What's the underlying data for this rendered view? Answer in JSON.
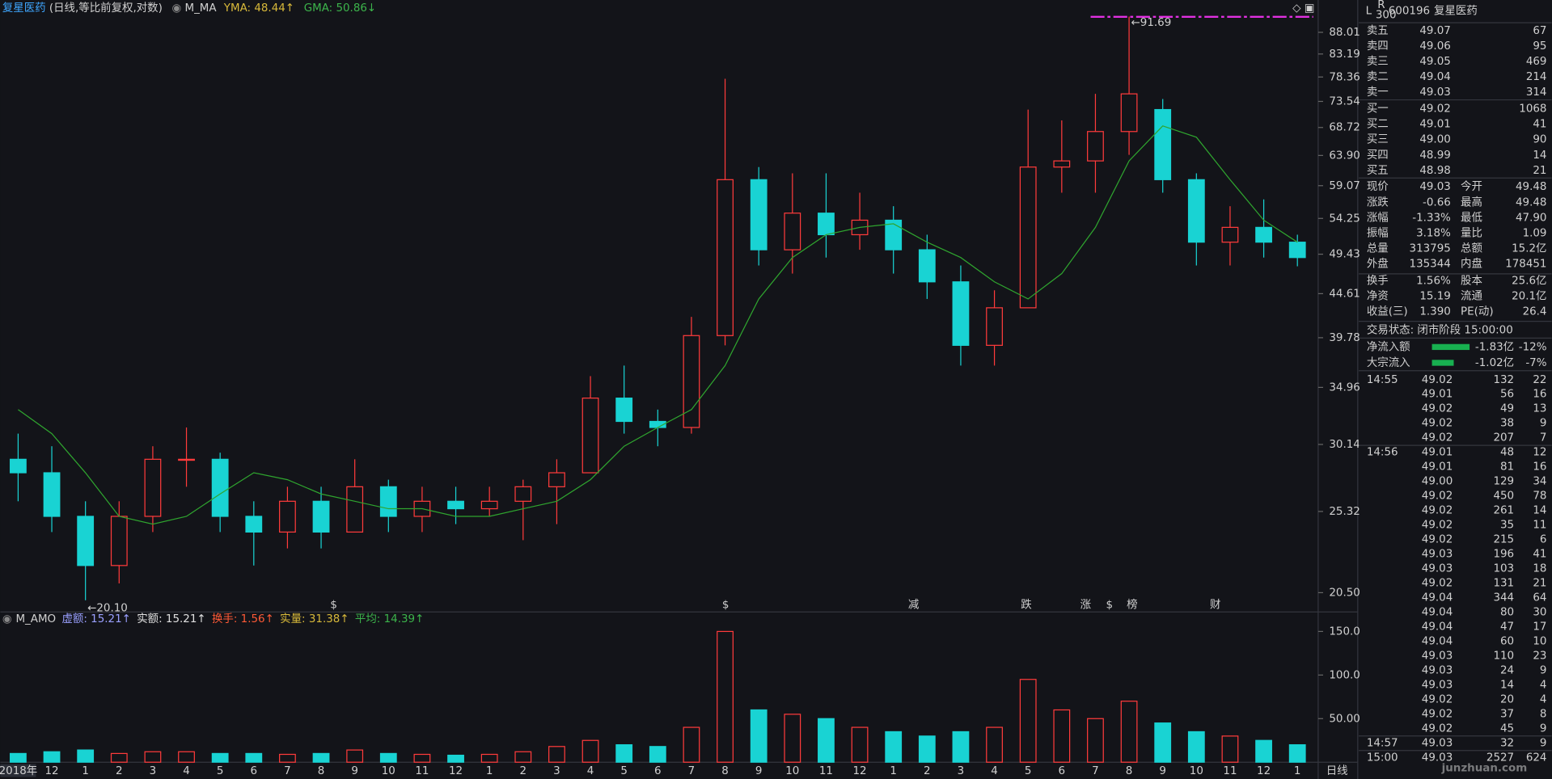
{
  "header": {
    "name": "复星医药",
    "params": "(日线,等比前复权,对数)",
    "indicator": "M_MA",
    "yma": "YMA: 48.44↑",
    "gma": "GMA: 50.86↓",
    "yma_color": "#d8b93a",
    "gma_color": "#3cb44b"
  },
  "chart_data": [
    {
      "type": "candlestick",
      "categories": [
        "2018年",
        "12",
        "1",
        "2",
        "3",
        "4",
        "5",
        "6",
        "7",
        "8",
        "9",
        "10",
        "11",
        "12",
        "1",
        "2",
        "3",
        "4",
        "5",
        "6",
        "7",
        "8",
        "9",
        "10",
        "11",
        "12",
        "1",
        "2",
        "3",
        "4",
        "5",
        "6",
        "7",
        "8",
        "9",
        "10",
        "11",
        "12",
        "1"
      ],
      "open": [
        29,
        28,
        25,
        22,
        25,
        29,
        29,
        25,
        24,
        26,
        24,
        27,
        25,
        26,
        25.5,
        26,
        27,
        28,
        34,
        32,
        31.5,
        40,
        60,
        50,
        55,
        52,
        54,
        50,
        46,
        39,
        43,
        62,
        63,
        68,
        72,
        60,
        51,
        53,
        51
      ],
      "high": [
        31,
        30,
        26,
        26,
        30,
        31.5,
        29.5,
        26,
        27,
        27,
        29,
        27.5,
        27,
        27,
        27,
        27.5,
        29,
        36,
        37,
        33,
        42,
        78,
        62,
        61,
        61,
        58,
        56,
        52,
        48,
        45,
        72,
        70,
        75,
        91.69,
        74,
        61,
        56,
        57,
        52
      ],
      "low": [
        26,
        24,
        20.1,
        21,
        24,
        27,
        24,
        22,
        23,
        23,
        24,
        24,
        24,
        24.5,
        25,
        23.5,
        24.5,
        28,
        31,
        30,
        31,
        39,
        48,
        47,
        49,
        50,
        47,
        44,
        37,
        37,
        43,
        58,
        58,
        64,
        58,
        48,
        48,
        49,
        47.9
      ],
      "close": [
        28,
        25,
        22,
        25,
        29,
        29,
        25,
        24,
        26,
        24,
        27,
        25,
        26,
        25.5,
        26,
        27,
        28,
        34,
        32,
        31.5,
        40,
        60,
        50,
        55,
        52,
        54,
        50,
        46,
        39,
        43,
        62,
        63,
        68,
        75,
        60,
        51,
        53,
        51,
        49
      ],
      "colors": {
        "up": "#ff3b3b",
        "down": "#19d3d3"
      },
      "series": [
        {
          "color": "#2fa52f",
          "values": [
            33,
            31,
            28,
            25,
            24.5,
            25,
            26.5,
            28,
            27.5,
            26.5,
            26,
            25.5,
            25.5,
            25,
            25,
            25.5,
            26,
            27.5,
            30,
            31.5,
            33,
            37,
            44,
            49,
            52,
            53,
            53.5,
            51,
            49,
            46,
            44,
            47,
            53,
            63,
            69,
            67,
            60,
            54,
            51
          ]
        }
      ],
      "log_scale": true,
      "ylim": [
        19.7,
        93.3
      ],
      "yticks": [
        {
          "value": 88.01,
          "label": "88.01"
        },
        {
          "value": 83.19,
          "label": "83.19"
        },
        {
          "value": 78.36,
          "label": "78.36"
        },
        {
          "value": 73.54,
          "label": "73.54"
        },
        {
          "value": 68.72,
          "label": "68.72"
        },
        {
          "value": 63.9,
          "label": "63.90"
        },
        {
          "value": 59.07,
          "label": "59.07"
        },
        {
          "value": 54.25,
          "label": "54.25"
        },
        {
          "value": 49.43,
          "label": "49.43"
        },
        {
          "value": 44.61,
          "label": "44.61"
        },
        {
          "value": 39.78,
          "label": "39.78"
        },
        {
          "value": 34.96,
          "label": "34.96"
        },
        {
          "value": 30.14,
          "label": "30.14"
        },
        {
          "value": 25.32,
          "label": "25.32"
        },
        {
          "value": 20.5,
          "label": "20.50"
        }
      ],
      "annotations": [
        {
          "text": "←91.69",
          "index": 33
        },
        {
          "text": "←20.10",
          "index": 2
        }
      ],
      "events": [
        {
          "text": "$",
          "color": "#ff3b3b"
        },
        {
          "text": "$",
          "color": "#ff3b3b"
        },
        {
          "text": "减",
          "color": "#3cd070"
        },
        {
          "text": "跌",
          "color": "#3cd070"
        },
        {
          "text": "涨",
          "color": "#ff5a5a"
        },
        {
          "text": "$",
          "color": "#ff3b3b"
        },
        {
          "text": "榜",
          "color": "#f0a030"
        },
        {
          "text": "财",
          "color": "#5aa0ff"
        }
      ],
      "period": "日线"
    },
    {
      "type": "bar",
      "title": "M_AMO",
      "legend": [
        {
          "text": "虚额: 15.21↑",
          "color": "#9aa0ff"
        },
        {
          "text": "实额: 15.21↑",
          "color": "#e0e0e0"
        },
        {
          "text": "换手: 1.56↑",
          "color": "#ff5a36"
        },
        {
          "text": "实量: 31.38↑",
          "color": "#d8b93a"
        },
        {
          "text": "平均: 14.39↑",
          "color": "#3cb44b"
        }
      ],
      "values": [
        10,
        12,
        14,
        10,
        12,
        12,
        10,
        10,
        9,
        10,
        14,
        10,
        9,
        8,
        9,
        12,
        18,
        25,
        20,
        18,
        40,
        150,
        60,
        55,
        50,
        40,
        35,
        30,
        35,
        40,
        95,
        60,
        50,
        70,
        45,
        35,
        30,
        25,
        20
      ],
      "ylim": [
        0,
        169
      ],
      "yticks": [
        {
          "value": 150,
          "label": "150.0"
        },
        {
          "value": 100,
          "label": "100.0"
        },
        {
          "value": 50,
          "label": "50.00"
        }
      ]
    }
  ],
  "panel": {
    "flag": "L",
    "badge": "R",
    "badge_sub": "300",
    "code": "600196",
    "name": "复星医药",
    "order_book": [
      [
        "卖五",
        "49.07",
        "67"
      ],
      [
        "卖四",
        "49.06",
        "95"
      ],
      [
        "卖三",
        "49.05",
        "469"
      ],
      [
        "卖二",
        "49.04",
        "214"
      ],
      [
        "卖一",
        "49.03",
        "314"
      ],
      [
        "买一",
        "49.02",
        "1068"
      ],
      [
        "买二",
        "49.01",
        "41"
      ],
      [
        "买三",
        "49.00",
        "90"
      ],
      [
        "买四",
        "48.99",
        "14"
      ],
      [
        "买五",
        "48.98",
        "21"
      ]
    ],
    "quote": [
      [
        "现价",
        "49.03",
        "今开",
        "49.48"
      ],
      [
        "涨跌",
        "-0.66",
        "最高",
        "49.48"
      ],
      [
        "涨幅",
        "-1.33%",
        "最低",
        "47.90"
      ],
      [
        "振幅",
        "3.18%",
        "量比",
        "1.09"
      ],
      [
        "总量",
        "313795",
        "总额",
        "15.2亿"
      ],
      [
        "外盘",
        "135344",
        "内盘",
        "178451"
      ],
      [
        "换手",
        "1.56%",
        "股本",
        "25.6亿"
      ],
      [
        "净资",
        "15.19",
        "流通",
        "20.1亿"
      ],
      [
        "收益(三)",
        "1.390",
        "PE(动)",
        "26.4"
      ]
    ],
    "quote_colors": [
      [
        "#2ecc40",
        "#2ecc40"
      ],
      [
        "#2ecc40",
        "#2ecc40"
      ],
      [
        "#2ecc40",
        "#2ecc40"
      ],
      [
        "#e0e0e0",
        "#ff4d6a"
      ],
      [
        "#e0a030",
        "#e040e0"
      ],
      [
        "#ff3b3b",
        "#2ecc40"
      ],
      [
        "#e0e0e0",
        "#e0e0e0"
      ],
      [
        "#e0e0e0",
        "#e0e0e0"
      ],
      [
        "#e0e0e0",
        "#e0e0e0"
      ]
    ],
    "status": "交易状态: 闭市阶段 15:00:00",
    "flows": [
      [
        "净流入额",
        "-1.83亿",
        "-12%"
      ],
      [
        "大宗流入",
        "-1.02亿",
        "-7%"
      ]
    ],
    "trades": [
      {
        "time": "14:55",
        "rows": [
          [
            "49.02",
            "132",
            "22",
            "#ff3b3b"
          ],
          [
            "49.01",
            "56",
            "16",
            "#2ecc40"
          ],
          [
            "49.02",
            "49",
            "13",
            "#ff3b3b"
          ],
          [
            "49.02",
            "38",
            "9",
            "#ff3b3b"
          ],
          [
            "49.02",
            "207",
            "7",
            "#ff3b3b"
          ]
        ]
      },
      {
        "time": "14:56",
        "rows": [
          [
            "49.01",
            "48",
            "12",
            "#2ecc40"
          ],
          [
            "49.01",
            "81",
            "16",
            "#2ecc40"
          ],
          [
            "49.00",
            "129",
            "34",
            "#2ecc40"
          ],
          [
            "49.02",
            "450",
            "78",
            "#ff3b3b"
          ],
          [
            "49.02",
            "261",
            "14",
            "#2ecc40"
          ],
          [
            "49.02",
            "35",
            "11",
            "#2ecc40"
          ],
          [
            "49.02",
            "215",
            "6",
            "#2ecc40"
          ],
          [
            "49.03",
            "196",
            "41",
            "#ff3b3b"
          ],
          [
            "49.03",
            "103",
            "18",
            "#ff3b3b"
          ],
          [
            "49.02",
            "131",
            "21",
            "#2ecc40"
          ],
          [
            "49.04",
            "344",
            "64",
            "#ff3b3b"
          ],
          [
            "49.04",
            "80",
            "30",
            "#ff3b3b"
          ],
          [
            "49.04",
            "47",
            "17",
            "#ff3b3b"
          ],
          [
            "49.04",
            "60",
            "10",
            "#2ecc40"
          ],
          [
            "49.03",
            "110",
            "23",
            "#2ecc40"
          ],
          [
            "49.03",
            "24",
            "9",
            "#2ecc40"
          ],
          [
            "49.03",
            "14",
            "4",
            "#ff3b3b"
          ],
          [
            "49.02",
            "20",
            "4",
            "#2ecc40"
          ],
          [
            "49.02",
            "37",
            "8",
            "#2ecc40"
          ],
          [
            "49.02",
            "45",
            "9",
            "#2ecc40"
          ]
        ]
      },
      {
        "time": "14:57",
        "rows": [
          [
            "49.03",
            "32",
            "9",
            "#ff3b3b"
          ]
        ]
      },
      {
        "time": "15:00",
        "rows": [
          [
            "49.03",
            "2527",
            "624",
            "#e0a030"
          ]
        ]
      }
    ],
    "watermark": "junzhuan.com"
  }
}
